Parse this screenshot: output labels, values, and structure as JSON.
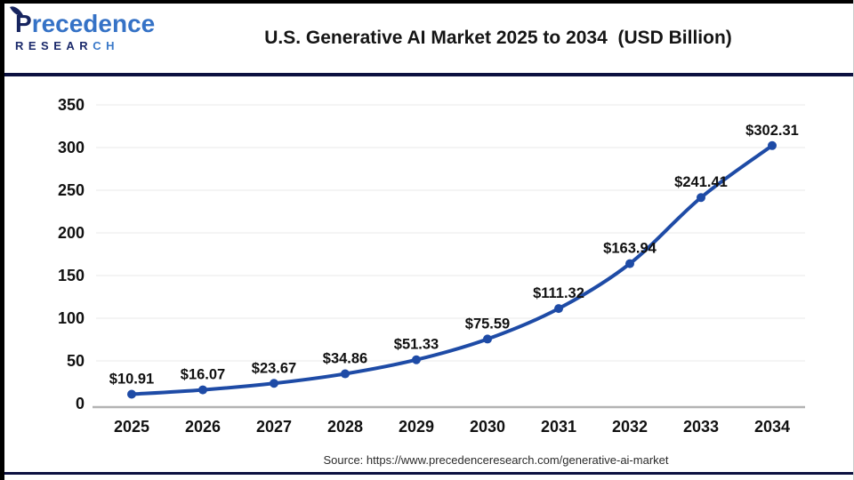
{
  "header": {
    "logo": {
      "word_initial": "P",
      "word_rest": "recedence",
      "sub_main": "RESEAR",
      "sub_accent": "CH"
    },
    "title": "U.S. Generative AI Market 2025 to 2034  (USD Billion)"
  },
  "chart_data": {
    "type": "line",
    "title": "U.S. Generative AI Market 2025 to 2034 (USD Billion)",
    "categories": [
      "2025",
      "2026",
      "2027",
      "2028",
      "2029",
      "2030",
      "2031",
      "2032",
      "2033",
      "2034"
    ],
    "values": [
      10.91,
      16.07,
      23.67,
      34.86,
      51.33,
      75.59,
      111.32,
      163.94,
      241.41,
      302.31
    ],
    "data_labels": [
      "$10.91",
      "$16.07",
      "$23.67",
      "$34.86",
      "$51.33",
      "$75.59",
      "$111.32",
      "$163.94",
      "$241.41",
      "$302.31"
    ],
    "xlabel": "",
    "ylabel": "",
    "ylim": [
      0,
      350
    ],
    "yticks": [
      0,
      50,
      100,
      150,
      200,
      250,
      300,
      350
    ],
    "grid": true,
    "legend": "none",
    "line_color": "#1e4ba6",
    "marker": "circle"
  },
  "footer": {
    "source_text": "Source: https://www.precedenceresearch.com/generative-ai-market"
  },
  "colors": {
    "line": "#1e4ba6",
    "divider_navy": "#0c1140",
    "gridline": "#e9e9e9",
    "axis": "#b3b3b3",
    "logo_navy": "#16245f",
    "logo_blue": "#3572c6",
    "text": "#111111"
  }
}
